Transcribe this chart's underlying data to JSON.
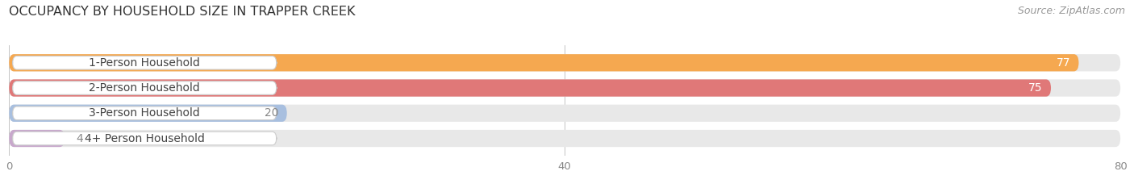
{
  "title": "OCCUPANCY BY HOUSEHOLD SIZE IN TRAPPER CREEK",
  "source": "Source: ZipAtlas.com",
  "categories": [
    "1-Person Household",
    "2-Person Household",
    "3-Person Household",
    "4+ Person Household"
  ],
  "values": [
    77,
    75,
    20,
    4
  ],
  "bar_colors": [
    "#F5A850",
    "#E07878",
    "#A8BFDF",
    "#C8A8CC"
  ],
  "bar_bg_color": "#E8E8E8",
  "value_colors": [
    "#FFFFFF",
    "#FFFFFF",
    "#888888",
    "#888888"
  ],
  "xlim": [
    0,
    80
  ],
  "xticks": [
    0,
    40,
    80
  ],
  "figsize": [
    14.06,
    2.33
  ],
  "dpi": 100,
  "title_fontsize": 11.5,
  "source_fontsize": 9,
  "label_fontsize": 10,
  "value_fontsize": 10,
  "bar_height": 0.68,
  "bar_gap": 1.0
}
